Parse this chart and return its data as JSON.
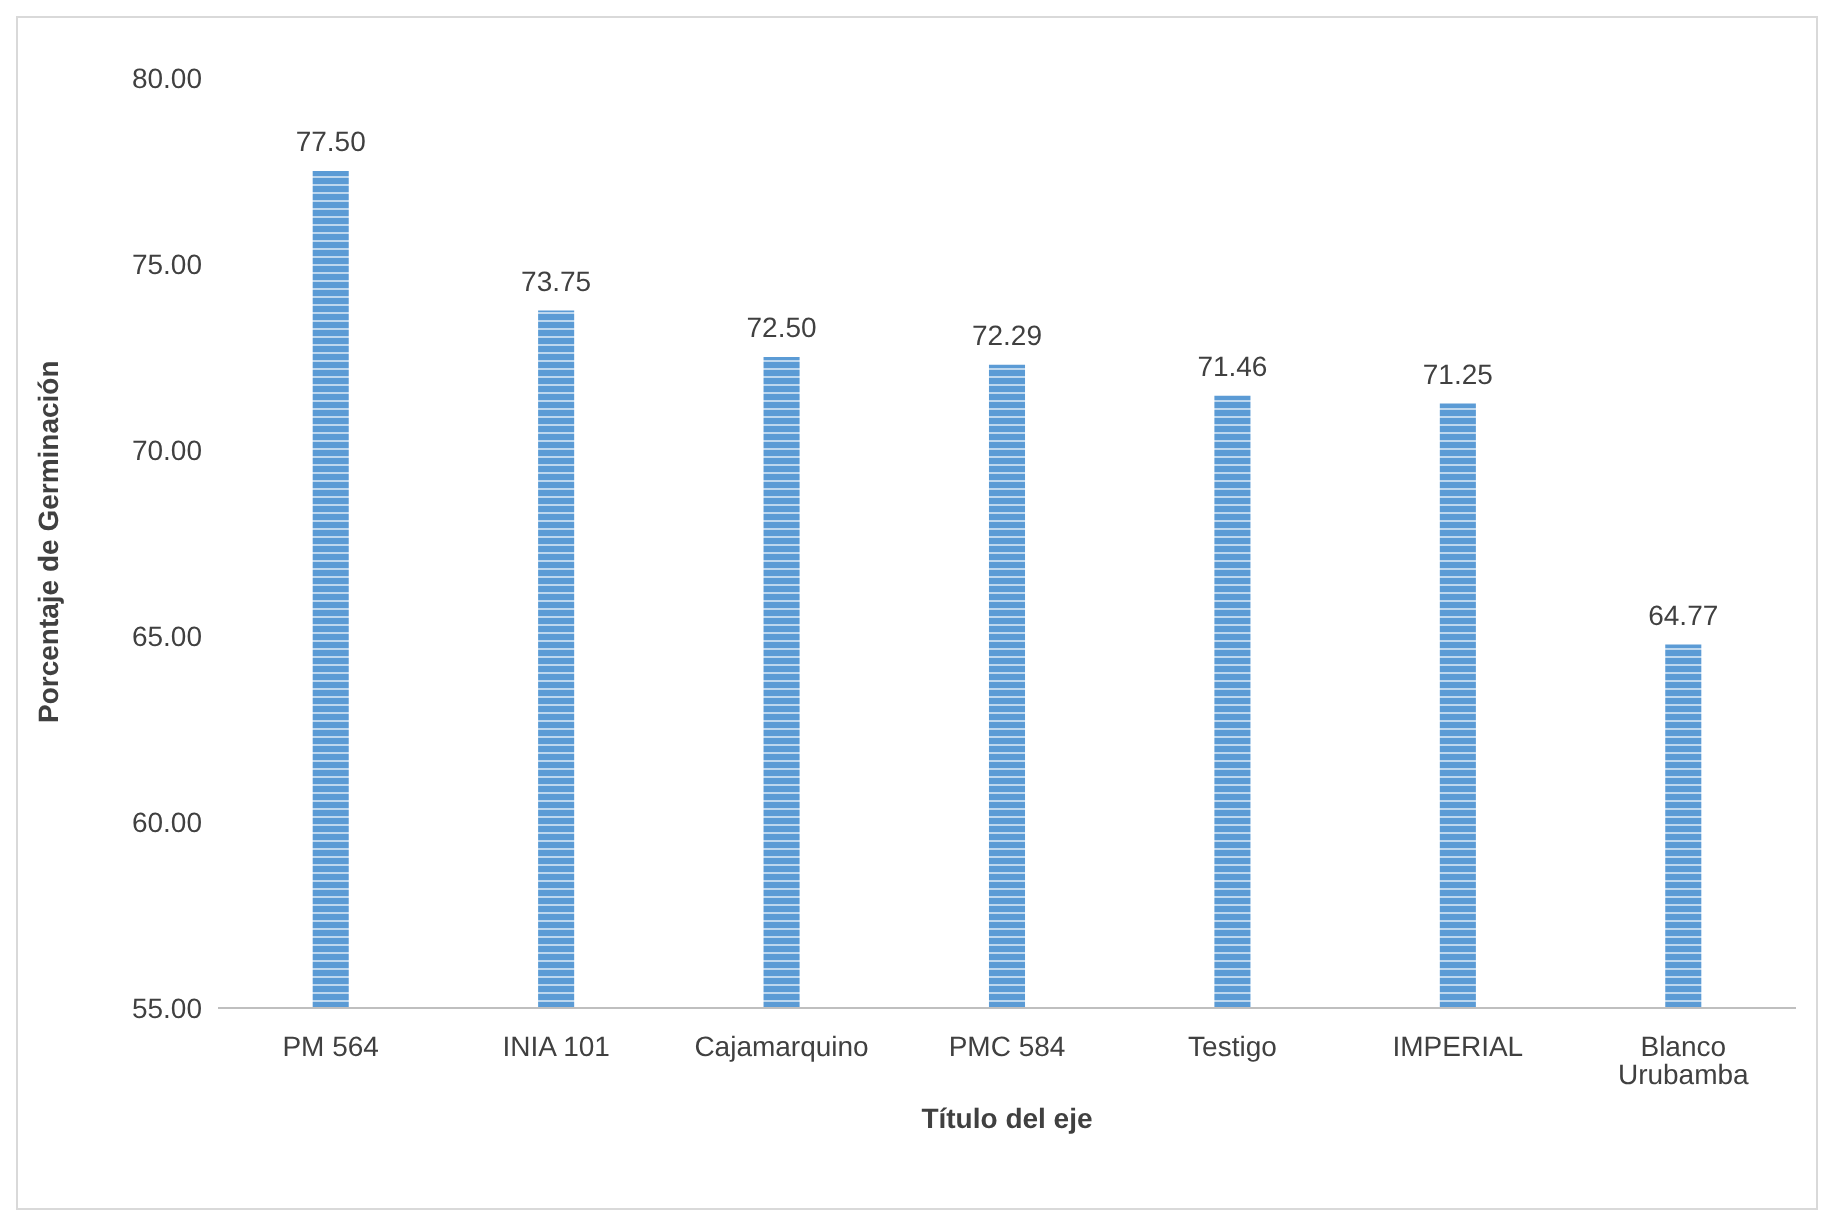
{
  "chart_data": {
    "type": "bar",
    "xlabel": "Título del eje",
    "ylabel": "Porcentaje de Germinación",
    "categories": [
      "PM 564",
      "INIA 101",
      "Cajamarquino",
      "PMC 584",
      "Testigo",
      "IMPERIAL",
      "Blanco Urubamba"
    ],
    "values": [
      77.5,
      73.75,
      72.5,
      72.29,
      71.46,
      71.25,
      64.77
    ],
    "value_labels": [
      "77.50",
      "73.75",
      "72.50",
      "72.29",
      "71.46",
      "71.25",
      "64.77"
    ],
    "color": "#5b9bd5",
    "ylim": [
      55,
      80
    ],
    "yticks": [
      {
        "value": 55,
        "label": "55.00"
      },
      {
        "value": 60,
        "label": "60.00"
      },
      {
        "value": 65,
        "label": "65.00"
      },
      {
        "value": 70,
        "label": "70.00"
      },
      {
        "value": 75,
        "label": "75.00"
      },
      {
        "value": 80,
        "label": "80.00"
      }
    ],
    "grid": false,
    "legend": false
  }
}
